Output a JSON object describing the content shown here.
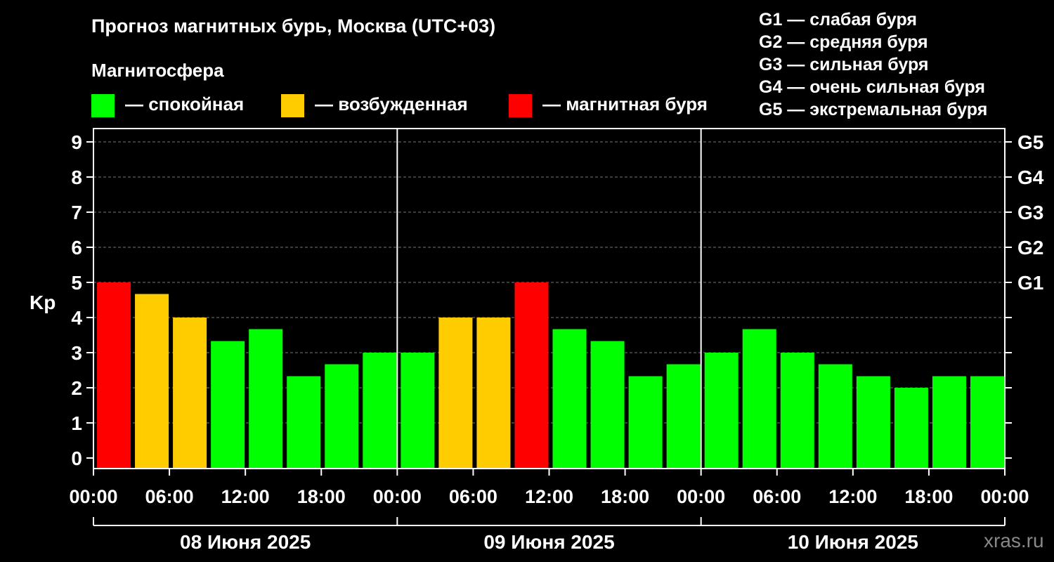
{
  "header": {
    "title": "Прогноз магнитных бурь, Москва (UTC+03)",
    "magnetosphere_label": "Магнитосфера",
    "legend": [
      {
        "label": "— спокойная",
        "color": "#00ff00"
      },
      {
        "label": "— возбужденная",
        "color": "#ffcc00"
      },
      {
        "label": "— магнитная буря",
        "color": "#ff0000"
      }
    ],
    "g_scale": [
      "G1 — слабая буря",
      "G2 — средняя буря",
      "G3 — сильная буря",
      "G4 — очень сильная буря",
      "G5 — экстремальная буря"
    ]
  },
  "watermark": "xras.ru",
  "chart_data": {
    "type": "bar",
    "ylabel": "Kp",
    "ylim": [
      0,
      9
    ],
    "yticks": [
      "0",
      "1",
      "2",
      "3",
      "4",
      "5",
      "6",
      "7",
      "8",
      "9"
    ],
    "right_axis_labels": [
      {
        "value": 5,
        "label": "G1"
      },
      {
        "value": 6,
        "label": "G2"
      },
      {
        "value": 7,
        "label": "G3"
      },
      {
        "value": 8,
        "label": "G4"
      },
      {
        "value": 9,
        "label": "G5"
      }
    ],
    "x_tick_labels": [
      "00:00",
      "06:00",
      "12:00",
      "18:00",
      "00:00",
      "06:00",
      "12:00",
      "18:00",
      "00:00",
      "06:00",
      "12:00",
      "18:00",
      "00:00"
    ],
    "day_labels": [
      "08 Июня 2025",
      "09 Июня 2025",
      "10 Июня 2025"
    ],
    "grid": true,
    "colors": {
      "quiet": "#00ff00",
      "active": "#ffcc00",
      "storm": "#ff0000"
    },
    "values": [
      5.0,
      4.67,
      4.0,
      3.33,
      3.67,
      2.33,
      2.67,
      3.0,
      3.0,
      4.0,
      4.0,
      5.0,
      3.67,
      3.33,
      2.33,
      2.67,
      3.0,
      3.67,
      3.0,
      2.67,
      2.33,
      2.0,
      2.33,
      2.33
    ],
    "status": [
      "storm",
      "active",
      "active",
      "quiet",
      "quiet",
      "quiet",
      "quiet",
      "quiet",
      "quiet",
      "active",
      "active",
      "storm",
      "quiet",
      "quiet",
      "quiet",
      "quiet",
      "quiet",
      "quiet",
      "quiet",
      "quiet",
      "quiet",
      "quiet",
      "quiet",
      "quiet"
    ]
  }
}
